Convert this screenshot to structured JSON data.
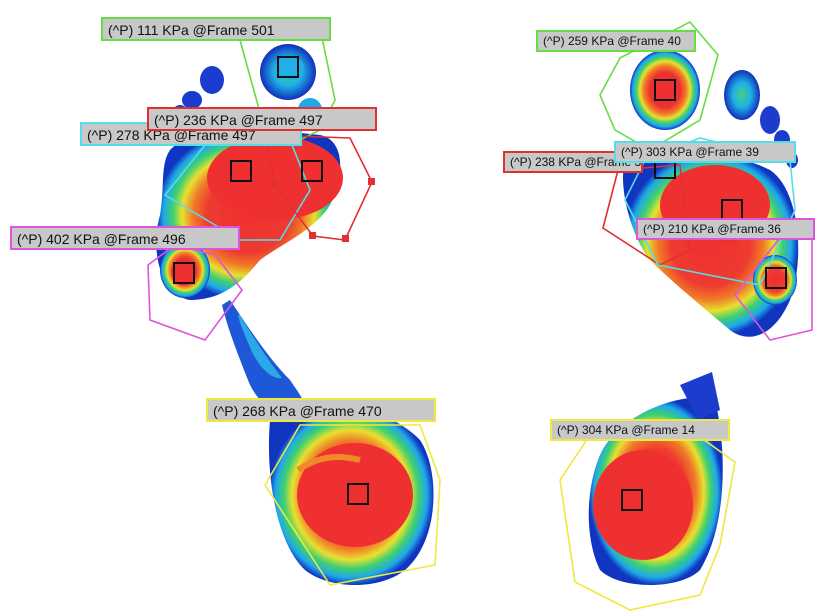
{
  "colors": {
    "outline_green": "#66dd44",
    "outline_cyan": "#55dde8",
    "outline_red": "#e03030",
    "outline_magenta": "#dd55dd",
    "outline_yellow": "#f0e840",
    "peak_marker": "#111111",
    "label_bg": "#c8c8c8"
  },
  "left_foot": {
    "labels": [
      {
        "id": "toe-small",
        "text": "(^P) 111 KPa @Frame 501",
        "border": "#66dd44"
      },
      {
        "id": "toe-cyan",
        "text": "(^P) 278 KPa @Frame 497",
        "border": "#55dde8"
      },
      {
        "id": "toe-big",
        "text": "(^P) 236 KPa @Frame 497",
        "border": "#e03030"
      },
      {
        "id": "met",
        "text": "(^P) 402 KPa @Frame 496",
        "border": "#dd55dd"
      },
      {
        "id": "heel",
        "text": "(^P) 268 KPa @Frame 470",
        "border": "#f0e840"
      }
    ]
  },
  "right_foot": {
    "labels": [
      {
        "id": "toe-big",
        "text": "(^P) 259 KPa @Frame 40",
        "border": "#66dd44"
      },
      {
        "id": "toe-red",
        "text": "(^P) 238 KPa @Frame 39",
        "border": "#e03030"
      },
      {
        "id": "met-cyan",
        "text": "(^P) 303 KPa @Frame 39",
        "border": "#55dde8"
      },
      {
        "id": "met-magenta",
        "text": "(^P) 210 KPa @Frame 36",
        "border": "#dd55dd"
      },
      {
        "id": "heel",
        "text": "(^P) 304 KPa @Frame 14",
        "border": "#f0e840"
      }
    ]
  }
}
